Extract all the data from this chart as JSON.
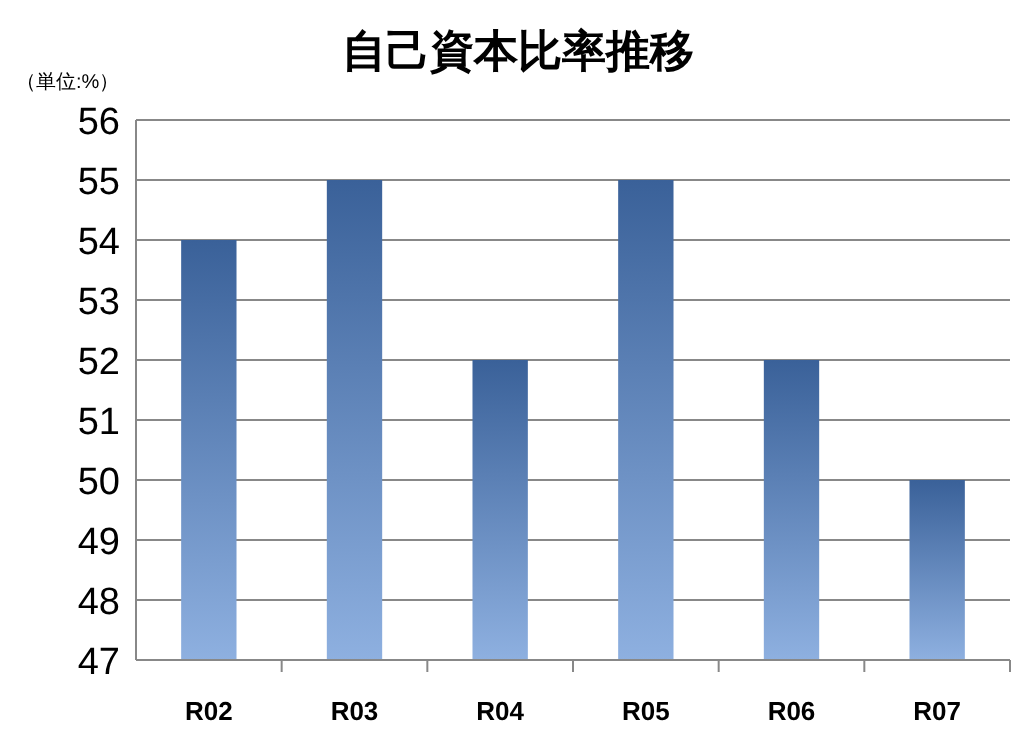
{
  "chart_data": {
    "type": "bar",
    "title": "自己資本比率推移",
    "ylabel": "（単位:%）",
    "categories": [
      "R02",
      "R03",
      "R04",
      "R05",
      "R06",
      "R07"
    ],
    "values": [
      54,
      55,
      52,
      55,
      52,
      50
    ],
    "color": "#3a6199",
    "ylim": [
      47,
      56
    ],
    "yticks": [
      47,
      48,
      49,
      50,
      51,
      52,
      53,
      54,
      55,
      56
    ],
    "grid": "y"
  }
}
